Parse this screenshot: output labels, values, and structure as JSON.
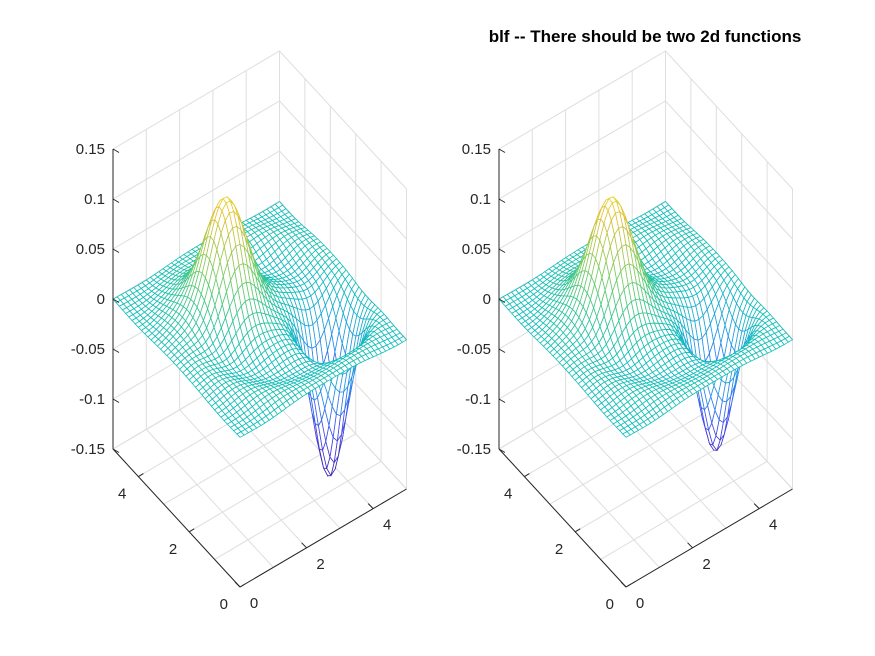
{
  "figure": {
    "title": "blf -- There should be two 2d functions"
  },
  "chart_data": [
    {
      "type": "surface-mesh",
      "title": "",
      "xlabel": "",
      "ylabel": "",
      "zlabel": "",
      "xlim": [
        0,
        5
      ],
      "ylim": [
        0,
        5
      ],
      "zlim": [
        -0.15,
        0.15
      ],
      "x_ticks": [
        "0",
        "2",
        "4"
      ],
      "y_ticks": [
        "0",
        "2",
        "4"
      ],
      "z_ticks": [
        "0.15",
        "0.1",
        "0.05",
        "0",
        "-0.05",
        "-0.1",
        "-0.15"
      ],
      "grid": true,
      "colormap": "parula",
      "grid_size": 41,
      "surface": {
        "peak": {
          "x": 1.9,
          "y": 3.1,
          "z": 0.117,
          "sigma": 0.55
        },
        "trough": {
          "x": 3.9,
          "y": 1.6,
          "z": -0.155,
          "sigma": 0.42
        },
        "ripple_amplitude": 0.006
      }
    },
    {
      "type": "surface-mesh",
      "title": "blf -- There should be two 2d functions",
      "xlabel": "",
      "ylabel": "",
      "zlabel": "",
      "xlim": [
        0,
        5
      ],
      "ylim": [
        0,
        5
      ],
      "zlim": [
        -0.15,
        0.15
      ],
      "x_ticks": [
        "0",
        "2",
        "4"
      ],
      "y_ticks": [
        "0",
        "2",
        "4"
      ],
      "z_ticks": [
        "0.15",
        "0.1",
        "0.05",
        "0",
        "-0.05",
        "-0.1",
        "-0.15"
      ],
      "grid": true,
      "colormap": "parula",
      "grid_size": 41,
      "surface": {
        "peak": {
          "x": 1.9,
          "y": 3.1,
          "z": 0.117,
          "sigma": 0.55
        },
        "trough": {
          "x": 3.9,
          "y": 1.6,
          "z": -0.13,
          "sigma": 0.42
        },
        "ripple_amplitude": 0.005
      }
    }
  ]
}
